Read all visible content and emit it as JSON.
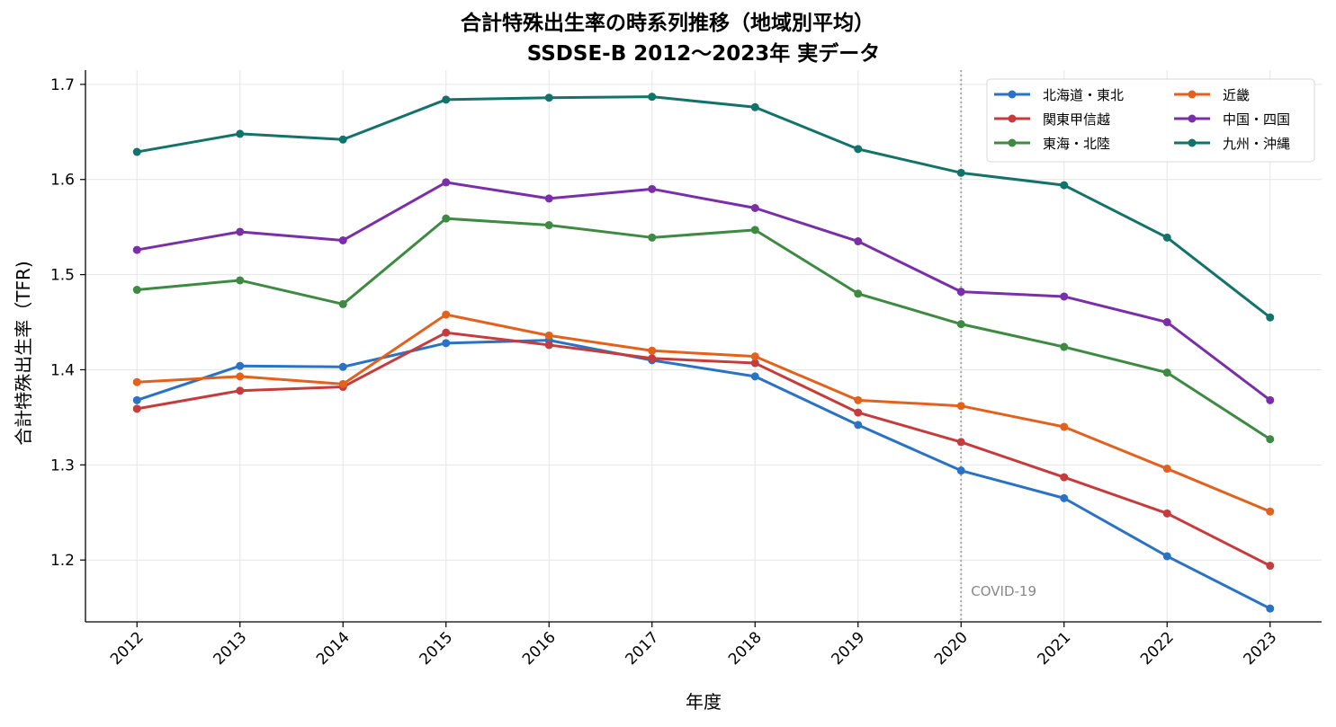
{
  "chart_data": {
    "type": "line",
    "title_line1": "合計特殊出生率の時系列推移（地域別平均）",
    "title_line2": "SSDSE-B 2012〜2023年 実データ",
    "xlabel": "年度",
    "ylabel": "合計特殊出生率（TFR)",
    "x": [
      2012,
      2013,
      2014,
      2015,
      2016,
      2017,
      2018,
      2019,
      2020,
      2021,
      2022,
      2023
    ],
    "x_tick_labels": [
      "2012",
      "2013",
      "2014",
      "2015",
      "2016",
      "2017",
      "2018",
      "2019",
      "2020",
      "2021",
      "2022",
      "2023"
    ],
    "y_ticks": [
      1.2,
      1.3,
      1.4,
      1.5,
      1.6,
      1.7
    ],
    "y_tick_labels": [
      "1.2",
      "1.3",
      "1.4",
      "1.5",
      "1.6",
      "1.7"
    ],
    "xlim": [
      2011.5,
      2023.5
    ],
    "ylim": [
      1.135,
      1.715
    ],
    "grid": true,
    "legend_position": "top-right",
    "legend_columns": 2,
    "annotation": {
      "x": 2020,
      "text": "COVID-19",
      "line_style": "dotted",
      "color": "#aaaaaa"
    },
    "series": [
      {
        "name": "北海道・東北",
        "color": "#2a72c4",
        "values": [
          1.368,
          1.404,
          1.403,
          1.428,
          1.431,
          1.41,
          1.393,
          1.342,
          1.294,
          1.265,
          1.204,
          1.149
        ]
      },
      {
        "name": "関東甲信越",
        "color": "#c63c3c",
        "values": [
          1.359,
          1.378,
          1.382,
          1.439,
          1.426,
          1.412,
          1.407,
          1.355,
          1.324,
          1.287,
          1.249,
          1.194
        ]
      },
      {
        "name": "東海・北陸",
        "color": "#3e8a43",
        "values": [
          1.484,
          1.494,
          1.469,
          1.559,
          1.552,
          1.539,
          1.547,
          1.48,
          1.448,
          1.424,
          1.397,
          1.327
        ]
      },
      {
        "name": "近畿",
        "color": "#e2611c",
        "values": [
          1.387,
          1.393,
          1.385,
          1.458,
          1.436,
          1.42,
          1.414,
          1.368,
          1.362,
          1.34,
          1.296,
          1.251
        ]
      },
      {
        "name": "中国・四国",
        "color": "#7a2fa8",
        "values": [
          1.526,
          1.545,
          1.536,
          1.597,
          1.58,
          1.59,
          1.57,
          1.535,
          1.482,
          1.477,
          1.45,
          1.368
        ]
      },
      {
        "name": "九州・沖縄",
        "color": "#13736a",
        "values": [
          1.629,
          1.648,
          1.642,
          1.684,
          1.686,
          1.687,
          1.676,
          1.632,
          1.607,
          1.594,
          1.539,
          1.455
        ]
      }
    ]
  }
}
